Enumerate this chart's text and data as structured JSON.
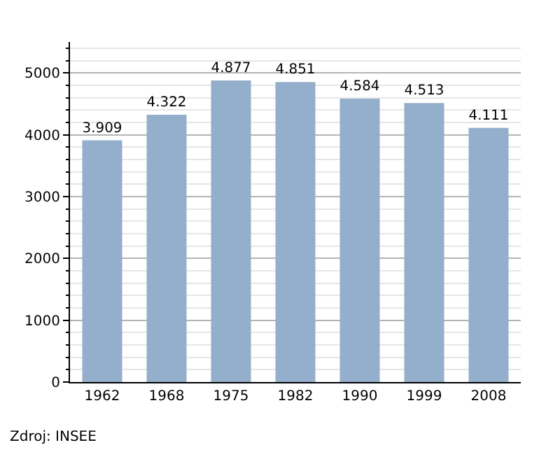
{
  "chart_data": {
    "type": "bar",
    "categories": [
      "1962",
      "1968",
      "1975",
      "1982",
      "1990",
      "1999",
      "2008"
    ],
    "values": [
      3909,
      4322,
      4877,
      4851,
      4584,
      4513,
      4111
    ],
    "value_labels": [
      "3.909",
      "4.322",
      "4.877",
      "4.851",
      "4.584",
      "4.513",
      "4.111"
    ],
    "color": "#94afcb",
    "ylim": [
      0,
      5500
    ],
    "yticks": [
      0,
      1000,
      2000,
      3000,
      4000,
      5000
    ],
    "grid": "y",
    "legend": false,
    "annotations": [
      "Zdroj: INSEE"
    ]
  }
}
